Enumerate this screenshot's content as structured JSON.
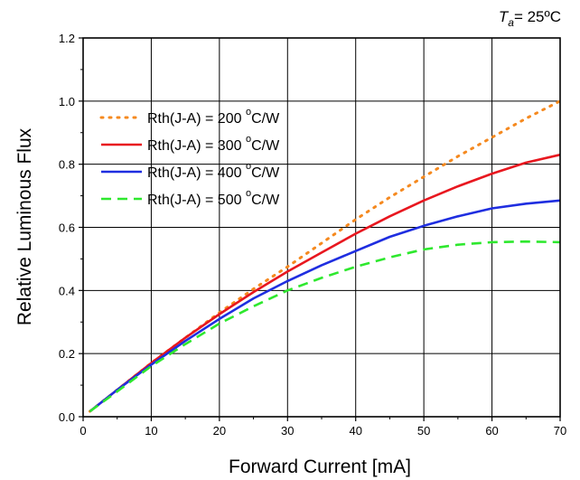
{
  "chart_data": {
    "type": "line",
    "condition": {
      "symbol": "T",
      "subscript": "a",
      "value": "= 25ºC"
    },
    "xlabel": "Forward Current [mA]",
    "ylabel": "Relative Luminous Flux",
    "xlim": [
      0,
      70
    ],
    "ylim": [
      0.0,
      1.2
    ],
    "x_ticks": [
      "0",
      "10",
      "20",
      "30",
      "40",
      "50",
      "60",
      "70"
    ],
    "y_ticks": [
      "0.0",
      "0.2",
      "0.4",
      "0.6",
      "0.8",
      "1.0",
      "1.2"
    ],
    "grid": true,
    "legend_position": "top-left",
    "x": [
      1,
      5,
      10,
      15,
      20,
      25,
      30,
      35,
      40,
      45,
      50,
      55,
      60,
      65,
      70
    ],
    "series": [
      {
        "name": "Rth(J-A) = 200 °C/W",
        "label_main": "Rth(J-A) = 200 ",
        "label_deg": "o",
        "label_unit": "C/W",
        "color": "#f5891f",
        "style": "dotted",
        "values": [
          0.017,
          0.085,
          0.17,
          0.25,
          0.33,
          0.405,
          0.475,
          0.55,
          0.625,
          0.695,
          0.76,
          0.825,
          0.885,
          0.945,
          1.0
        ]
      },
      {
        "name": "Rth(J-A) = 300 °C/W",
        "label_main": "Rth(J-A) = 300 ",
        "label_deg": "o",
        "label_unit": "C/W",
        "color": "#e8171f",
        "style": "solid",
        "values": [
          0.017,
          0.085,
          0.17,
          0.25,
          0.325,
          0.395,
          0.46,
          0.52,
          0.58,
          0.635,
          0.685,
          0.73,
          0.77,
          0.805,
          0.83
        ]
      },
      {
        "name": "Rth(J-A) = 400 °C/W",
        "label_main": "Rth(J-A) = 400 ",
        "label_deg": "o",
        "label_unit": "C/W",
        "color": "#1f2ee0",
        "style": "solid",
        "values": [
          0.017,
          0.085,
          0.165,
          0.24,
          0.31,
          0.375,
          0.43,
          0.48,
          0.525,
          0.57,
          0.605,
          0.635,
          0.66,
          0.675,
          0.685
        ]
      },
      {
        "name": "Rth(J-A) = 500 °C/W",
        "label_main": "Rth(J-A) = 500 ",
        "label_deg": "o",
        "label_unit": "C/W",
        "color": "#2ee82e",
        "style": "dashed",
        "values": [
          0.017,
          0.08,
          0.16,
          0.23,
          0.295,
          0.35,
          0.4,
          0.44,
          0.475,
          0.505,
          0.53,
          0.545,
          0.553,
          0.555,
          0.553
        ]
      }
    ]
  }
}
